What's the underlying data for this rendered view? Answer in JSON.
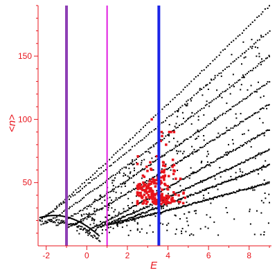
{
  "chart_data": {
    "type": "scatter",
    "title": "",
    "xlabel": "E",
    "ylabel": "<n>",
    "xlim": [
      -2.4,
      9.1
    ],
    "ylim": [
      0,
      190
    ],
    "grid": false,
    "legend": "none",
    "x_ticks": [
      -2,
      0,
      2,
      4,
      6,
      8
    ],
    "y_ticks": [
      50,
      100,
      150
    ],
    "colors": {
      "axis": "#e8131b",
      "tick_text": "#e8131b",
      "black_points": "#000000",
      "red_points": "#e8131b"
    },
    "vertical_lines": [
      {
        "x": -1.0,
        "color": "#8e3fb5",
        "width": "thick"
      },
      {
        "x": 1.0,
        "color": "#e01be0",
        "width": "medium"
      },
      {
        "x": 3.55,
        "color": "#1a24e8",
        "width": "thick"
      }
    ],
    "series": [
      {
        "color": "#000000",
        "marker": "dot",
        "bands": [
          {
            "x0": -2.3,
            "x1": 9.0,
            "y0": 20,
            "y1": 190
          },
          {
            "x0": -2.3,
            "x1": 9.0,
            "y0": 20,
            "y1": 170
          },
          {
            "x0": -2.0,
            "x1": 9.0,
            "y0": 18,
            "y1": 150
          },
          {
            "x0": -1.5,
            "x1": 9.0,
            "y0": 16,
            "y1": 130
          },
          {
            "x0": -1.0,
            "x1": 9.0,
            "y0": 14,
            "y1": 112
          },
          {
            "x0": 0.0,
            "x1": 9.0,
            "y0": 12,
            "y1": 92
          },
          {
            "x0": 0.5,
            "x1": 9.0,
            "y0": 14,
            "y1": 76
          },
          {
            "x0": 1.0,
            "x1": 9.0,
            "y0": 16,
            "y1": 64
          },
          {
            "x0": 1.5,
            "x1": 9.0,
            "y0": 18,
            "y1": 50
          }
        ],
        "arc": {
          "x_center": -1.6,
          "y_peak": 24,
          "x_min": -2.3,
          "x_max": 0.6,
          "y_end": 8
        }
      },
      {
        "color": "#e8131b",
        "marker": "square",
        "cluster": {
          "x_center": 3.4,
          "y_center": 33,
          "x_range": [
            2.5,
            5.0
          ],
          "y_range": [
            18,
            90
          ]
        }
      }
    ]
  }
}
